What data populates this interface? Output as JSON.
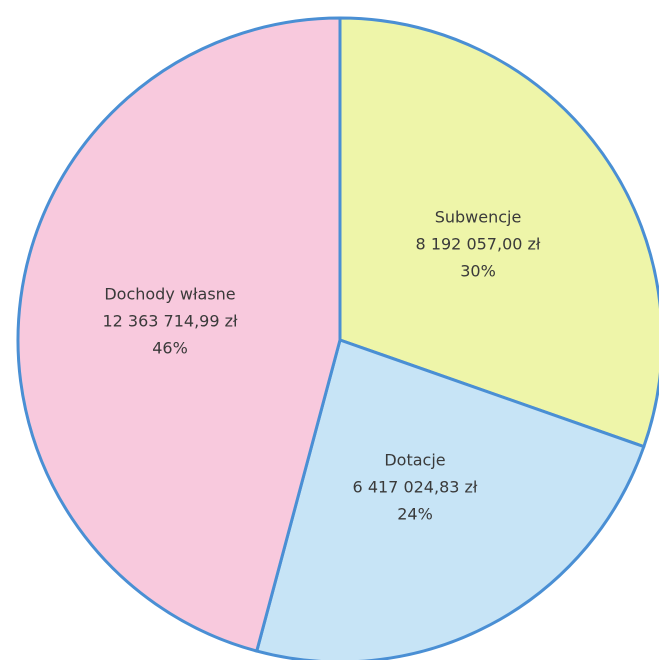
{
  "chart_data": {
    "type": "pie",
    "categories": [
      "Subwencje",
      "Dotacje",
      "Dochody własne"
    ],
    "values": [
      8192057.0,
      6417024.83,
      12363714.99
    ],
    "value_labels": [
      "8 192 057,00 zł",
      "6 417 024,83 zł",
      "12 363 714,99 zł"
    ],
    "percent_labels": [
      "30%",
      "24%",
      "46%"
    ],
    "colors": [
      "#eef5a9",
      "#c7e4f6",
      "#f8c9dd"
    ],
    "edge_color": "#4a8fd4"
  }
}
